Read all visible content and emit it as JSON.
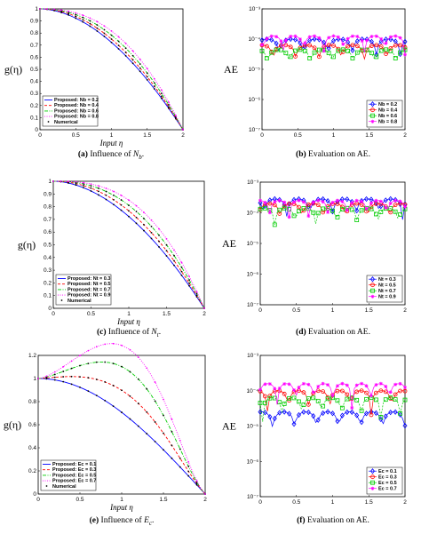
{
  "colors": [
    "#0000ff",
    "#ff0000",
    "#00cc00",
    "#ff00ff",
    "#000000"
  ],
  "chart_data": [
    {
      "type": "line",
      "id": "a",
      "caption_label": "(a)",
      "caption_text": "Influence of",
      "caption_symbol": "N",
      "caption_sub": "b",
      "ylabel": "g(η)",
      "xlabel": "Input η",
      "xlim": [
        0,
        2
      ],
      "ylim": [
        0,
        1
      ],
      "xticks": [
        "0",
        "0.5",
        "1",
        "1.5",
        "2"
      ],
      "yticks": [
        "0",
        "0.1",
        "0.2",
        "0.3",
        "0.4",
        "0.5",
        "0.6",
        "0.7",
        "0.8",
        "0.9",
        "1"
      ],
      "legend_position": "bottom-left",
      "series": [
        {
          "name": "Proposed:  Nb = 0.2",
          "p": 1.85,
          "style": "solid"
        },
        {
          "name": "Proposed:  Nb = 0.4",
          "p": 2.0,
          "style": "dash"
        },
        {
          "name": "Proposed:  Nb = 0.6",
          "p": 2.2,
          "style": "dashdot"
        },
        {
          "name": "Proposed:  Nb = 0.8",
          "p": 2.45,
          "style": "dot"
        }
      ],
      "numerical_label": "Numerical",
      "grid": false
    },
    {
      "type": "line",
      "id": "b",
      "caption_label": "(b)",
      "caption_text": "Evaluation on AE.",
      "ylabel": "AE",
      "xlim": [
        0,
        2
      ],
      "ylog": true,
      "ylim_exp": [
        -7,
        -3
      ],
      "xticks": [
        "0",
        "0.5",
        "1",
        "1.5",
        "2"
      ],
      "yticks": [
        "10⁻⁷",
        "10⁻⁶",
        "10⁻⁵",
        "10⁻⁴",
        "10⁻³"
      ],
      "legend_position": "bottom-right",
      "series": [
        {
          "name": "Nb = 0.2",
          "base": -4.0,
          "marker": "diamond"
        },
        {
          "name": "Nb = 0.4",
          "base": -4.2,
          "marker": "circle"
        },
        {
          "name": "Nb = 0.6",
          "base": -4.35,
          "marker": "square"
        },
        {
          "name": "Nb = 0.8",
          "base": -3.9,
          "marker": "star"
        }
      ],
      "grid": false
    },
    {
      "type": "line",
      "id": "c",
      "caption_label": "(c)",
      "caption_text": "Influence of",
      "caption_symbol": "N",
      "caption_sub": "t",
      "ylabel": "g(η)",
      "xlabel": "Input η",
      "xlim": [
        0,
        2
      ],
      "ylim": [
        0,
        1
      ],
      "xticks": [
        "0",
        "0.5",
        "1",
        "1.5",
        "2"
      ],
      "yticks": [
        "0",
        "0.1",
        "0.2",
        "0.3",
        "0.4",
        "0.5",
        "0.6",
        "0.7",
        "0.8",
        "0.9",
        "1"
      ],
      "legend_position": "bottom-left",
      "series": [
        {
          "name": "Proposed:  Nt = 0.3",
          "p": 1.85,
          "style": "solid"
        },
        {
          "name": "Proposed:  Nt = 0.5",
          "p": 2.1,
          "style": "dash"
        },
        {
          "name": "Proposed:  Nt = 0.7",
          "p": 2.4,
          "style": "dashdot"
        },
        {
          "name": "Proposed:  Nt = 0.9",
          "p": 2.75,
          "style": "dot"
        }
      ],
      "numerical_label": "Numerical",
      "grid": false
    },
    {
      "type": "line",
      "id": "d",
      "caption_label": "(d)",
      "caption_text": "Evaluation on AE.",
      "ylabel": "AE",
      "xlim": [
        0,
        2
      ],
      "ylog": true,
      "ylim_exp": [
        -7,
        -3
      ],
      "xticks": [
        "0",
        "0.5",
        "1",
        "1.5",
        "2"
      ],
      "yticks": [
        "10⁻⁷",
        "10⁻⁶",
        "10⁻⁵",
        "10⁻⁴",
        "10⁻³"
      ],
      "legend_position": "bottom-right",
      "series": [
        {
          "name": "Nt = 0.3",
          "base": -3.55,
          "marker": "diamond"
        },
        {
          "name": "Nt = 0.5",
          "base": -3.7,
          "marker": "circle"
        },
        {
          "name": "Nt = 0.7",
          "base": -3.85,
          "marker": "square"
        },
        {
          "name": "Nt = 0.9",
          "base": -3.6,
          "marker": "star"
        }
      ],
      "grid": false
    },
    {
      "type": "line",
      "id": "e",
      "caption_label": "(e)",
      "caption_text": "Influence of",
      "caption_symbol": "E",
      "caption_sub": "c",
      "ylabel": "g(η)",
      "xlabel": "Input η",
      "xlim": [
        0,
        2
      ],
      "ylim": [
        0,
        1.2
      ],
      "xticks": [
        "0",
        "0.5",
        "1",
        "1.5",
        "2"
      ],
      "yticks": [
        "0",
        "0.2",
        "0.4",
        "0.6",
        "0.8",
        "1",
        "1.2"
      ],
      "legend_position": "bottom-left",
      "series": [
        {
          "name": "Proposed:  Ec = 0.1",
          "bump": 0.0,
          "style": "solid"
        },
        {
          "name": "Proposed:  Ec = 0.3",
          "bump": 0.28,
          "style": "dash"
        },
        {
          "name": "Proposed:  Ec = 0.5",
          "bump": 0.58,
          "style": "dashdot"
        },
        {
          "name": "Proposed:  Ec = 0.7",
          "bump": 0.85,
          "style": "dot"
        }
      ],
      "numerical_label": "Numerical",
      "grid": false
    },
    {
      "type": "line",
      "id": "f",
      "caption_label": "(f)",
      "caption_text": "Evaluation on AE.",
      "ylabel": "AE",
      "xlim": [
        0,
        2
      ],
      "ylog": true,
      "ylim_exp": [
        -7,
        -3
      ],
      "xticks": [
        "0",
        "0.5",
        "1",
        "1.5",
        "2"
      ],
      "yticks": [
        "10⁻⁷",
        "10⁻⁶",
        "10⁻⁵",
        "10⁻⁴",
        "10⁻³"
      ],
      "legend_position": "bottom-right",
      "series": [
        {
          "name": "Ec = 0.1",
          "base": -4.6,
          "marker": "diamond"
        },
        {
          "name": "Ec = 0.3",
          "base": -4.0,
          "marker": "circle"
        },
        {
          "name": "Ec = 0.5",
          "base": -4.2,
          "marker": "square"
        },
        {
          "name": "Ec = 0.7",
          "base": -3.8,
          "marker": "star"
        }
      ],
      "grid": false
    }
  ]
}
